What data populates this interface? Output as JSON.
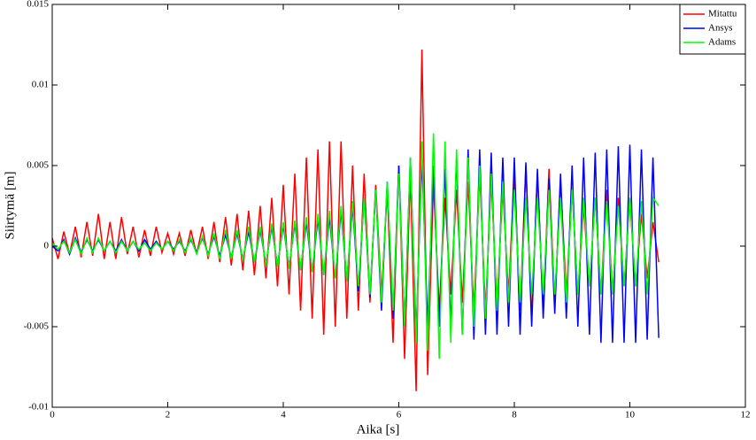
{
  "chart_data": {
    "type": "line",
    "xlabel": "Aika [s]",
    "ylabel": "Siirtymä [m]",
    "xlim": [
      0,
      12
    ],
    "xticks": [
      0,
      2,
      4,
      6,
      8,
      10,
      12
    ],
    "ylim": [
      -0.01,
      0.015
    ],
    "yticks": [
      -0.01,
      -0.005,
      0,
      0.005,
      0.01,
      0.015
    ],
    "grid": false,
    "legend": "upper right",
    "x": [
      0.0,
      0.1,
      0.2,
      0.3,
      0.4,
      0.5,
      0.6,
      0.7,
      0.8,
      0.9,
      1.0,
      1.1,
      1.2,
      1.3,
      1.4,
      1.5,
      1.6,
      1.7,
      1.8,
      1.9,
      2.0,
      2.1,
      2.2,
      2.3,
      2.4,
      2.5,
      2.6,
      2.7,
      2.8,
      2.9,
      3.0,
      3.1,
      3.2,
      3.3,
      3.4,
      3.5,
      3.6,
      3.7,
      3.8,
      3.9,
      4.0,
      4.1,
      4.2,
      4.3,
      4.4,
      4.5,
      4.6,
      4.7,
      4.8,
      4.9,
      5.0,
      5.1,
      5.2,
      5.3,
      5.4,
      5.5,
      5.6,
      5.7,
      5.8,
      5.9,
      6.0,
      6.1,
      6.2,
      6.3,
      6.4,
      6.5,
      6.6,
      6.7,
      6.8,
      6.9,
      7.0,
      7.1,
      7.2,
      7.3,
      7.4,
      7.5,
      7.6,
      7.7,
      7.8,
      7.9,
      8.0,
      8.1,
      8.2,
      8.3,
      8.4,
      8.5,
      8.6,
      8.7,
      8.8,
      8.9,
      9.0,
      9.1,
      9.2,
      9.3,
      9.4,
      9.5,
      9.6,
      9.7,
      9.8,
      9.9,
      10.0,
      10.1,
      10.2,
      10.3,
      10.4,
      10.5
    ],
    "series": [
      {
        "name": "Mitattu",
        "color": "#ff0000",
        "values": [
          0.0005,
          -0.0008,
          0.0009,
          -0.0005,
          0.0012,
          -0.0007,
          0.0015,
          -0.0006,
          0.002,
          -0.0008,
          0.0015,
          -0.0008,
          0.0018,
          -0.0005,
          0.0012,
          -0.0007,
          0.001,
          -0.0006,
          0.0012,
          -0.0004,
          0.0008,
          -0.0005,
          0.0008,
          -0.0006,
          0.001,
          -0.0005,
          0.0012,
          -0.0008,
          0.0015,
          -0.001,
          0.0018,
          -0.0012,
          0.002,
          -0.0015,
          0.0022,
          -0.0018,
          0.0025,
          -0.002,
          0.003,
          -0.0025,
          0.0038,
          -0.003,
          0.0045,
          -0.004,
          0.0055,
          -0.0045,
          0.006,
          -0.0055,
          0.0065,
          -0.005,
          0.0065,
          -0.0045,
          0.005,
          -0.004,
          0.0045,
          -0.0035,
          0.0038,
          -0.003,
          0.0035,
          -0.006,
          0.005,
          -0.007,
          0.0045,
          -0.009,
          0.0122,
          -0.008,
          0.004,
          -0.004,
          0.003,
          -0.003,
          0.0035,
          -0.0035,
          0.004,
          -0.004,
          0.0045,
          -0.004,
          0.004,
          -0.0035,
          0.0035,
          -0.003,
          0.0045,
          -0.004,
          0.005,
          -0.0045,
          0.0045,
          -0.004,
          0.0048,
          -0.0035,
          0.004,
          -0.003,
          0.0035,
          -0.003,
          0.0025,
          -0.0025,
          0.003,
          -0.003,
          0.0035,
          -0.003,
          0.003,
          -0.0025,
          0.0028,
          -0.0025,
          0.002,
          -0.002,
          0.0015,
          -0.001
        ]
      },
      {
        "name": "Ansys",
        "color": "#0000ff",
        "values": [
          0,
          -0.0003,
          0.0004,
          -0.0005,
          0.0005,
          -0.0004,
          0.0004,
          -0.0003,
          0.0004,
          -0.0003,
          0.0003,
          -0.0003,
          0.0004,
          -0.0003,
          0.0003,
          -0.0003,
          0.0004,
          -0.0002,
          0.0003,
          -0.0002,
          0.0003,
          -0.0002,
          0.0003,
          -0.0003,
          0.0004,
          -0.0004,
          0.0005,
          -0.0005,
          0.0006,
          -0.0006,
          0.0007,
          -0.0007,
          0.0008,
          -0.0008,
          0.0009,
          -0.001,
          0.001,
          -0.0011,
          0.0012,
          -0.0012,
          0.0013,
          -0.0013,
          0.0014,
          -0.0015,
          0.0015,
          -0.0016,
          0.0017,
          -0.0018,
          0.0018,
          -0.002,
          0.0022,
          -0.0022,
          0.0025,
          -0.0028,
          0.003,
          -0.0032,
          0.0035,
          -0.004,
          0.004,
          -0.0045,
          0.005,
          -0.005,
          0.0055,
          -0.0055,
          0.0055,
          -0.005,
          0.005,
          -0.005,
          0.0048,
          -0.005,
          0.0055,
          -0.0055,
          0.006,
          -0.0058,
          0.006,
          -0.0055,
          0.0058,
          -0.0055,
          0.0055,
          -0.005,
          0.0055,
          -0.0055,
          0.0052,
          -0.005,
          0.0048,
          -0.0045,
          0.0042,
          -0.0042,
          0.0045,
          -0.0045,
          0.005,
          -0.005,
          0.0055,
          -0.0055,
          0.0058,
          -0.006,
          0.006,
          -0.006,
          0.0062,
          -0.006,
          0.0063,
          -0.006,
          0.006,
          -0.0058,
          0.0055,
          -0.0057
        ]
      },
      {
        "name": "Adams",
        "color": "#00ff00",
        "values": [
          0.0002,
          -0.0002,
          0.0003,
          -0.0004,
          0.0004,
          -0.0005,
          0.0005,
          -0.0004,
          0.0005,
          -0.0003,
          0.0003,
          -0.0004,
          0.0003,
          -0.0003,
          0.0003,
          -0.0002,
          0.0002,
          -0.0003,
          0.0002,
          -0.0002,
          0.0003,
          -0.0003,
          0.0004,
          -0.0004,
          0.0005,
          -0.0005,
          0.0006,
          -0.0006,
          0.0008,
          -0.0008,
          0.001,
          -0.0008,
          0.001,
          -0.0009,
          0.0012,
          -0.001,
          0.0012,
          -0.0012,
          0.0014,
          -0.0013,
          0.0015,
          -0.0014,
          0.0016,
          -0.0015,
          0.0018,
          -0.0016,
          0.002,
          -0.0018,
          0.0022,
          -0.002,
          0.0025,
          -0.0022,
          0.0028,
          -0.0025,
          0.003,
          -0.003,
          0.0035,
          -0.0035,
          0.004,
          -0.004,
          0.0045,
          -0.005,
          0.0055,
          -0.006,
          0.0065,
          -0.0065,
          0.007,
          -0.007,
          0.0065,
          -0.006,
          0.006,
          -0.0055,
          0.0055,
          -0.005,
          0.005,
          -0.0045,
          0.0045,
          -0.004,
          0.004,
          -0.0035,
          0.0035,
          -0.0035,
          0.003,
          -0.003,
          0.003,
          -0.003,
          0.0035,
          -0.003,
          0.003,
          -0.0035,
          0.0035,
          -0.003,
          0.003,
          -0.0025,
          0.003,
          -0.003,
          0.0028,
          -0.003,
          0.0025,
          -0.0025,
          0.003,
          -0.0025,
          0.0028,
          -0.003,
          0.003,
          0.0025
        ]
      }
    ]
  }
}
